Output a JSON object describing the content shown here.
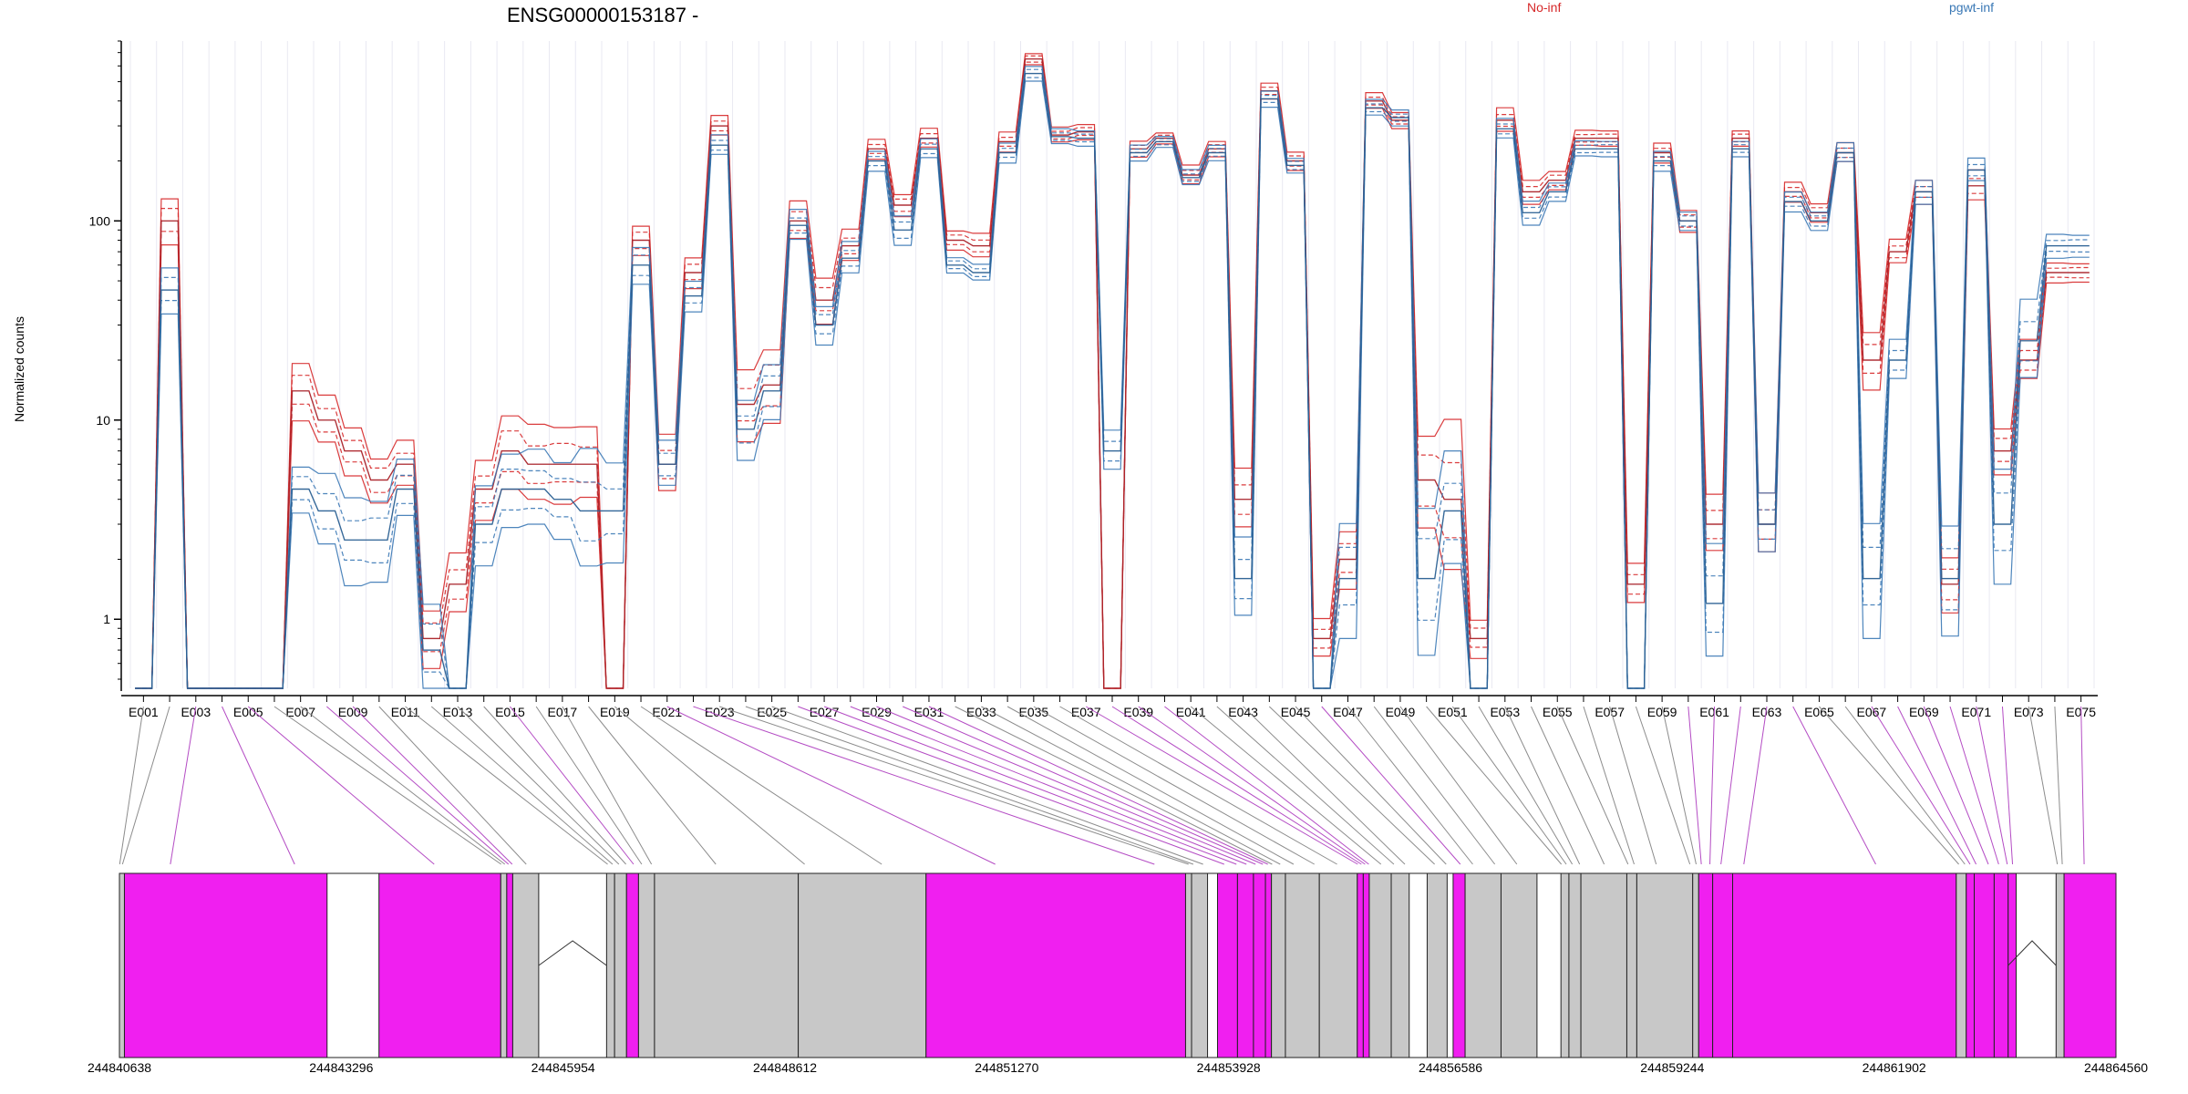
{
  "chart_data": {
    "type": "line",
    "title": "ENSG00000153187 -",
    "ylabel": "Normalized counts",
    "yscale": "log",
    "ylim": [
      0.45,
      800
    ],
    "yticks": [
      1,
      10,
      100
    ],
    "ytick_labels": [
      "1",
      "10",
      "100"
    ],
    "exon_count": 75,
    "x_tick_labels": [
      "E001",
      "E003",
      "E005",
      "E007",
      "E009",
      "E011",
      "E013",
      "E015",
      "E017",
      "E019",
      "E021",
      "E023",
      "E025",
      "E027",
      "E029",
      "E031",
      "E033",
      "E035",
      "E037",
      "E039",
      "E041",
      "E043",
      "E045",
      "E047",
      "E049",
      "E051",
      "E053",
      "E055",
      "E057",
      "E059",
      "E061",
      "E063",
      "E065",
      "E067",
      "E069",
      "E071",
      "E073",
      "E075"
    ],
    "legend": [
      {
        "name": "No-inf",
        "color": "#d62728"
      },
      {
        "name": "pgwt-inf",
        "color": "#3a78b5"
      }
    ],
    "groups": [
      {
        "name": "No-inf",
        "color": "#d62728",
        "mean": [
          0.45,
          100,
          0.45,
          0.45,
          0.45,
          0.45,
          14,
          10,
          7,
          5,
          6,
          0.8,
          1.5,
          4.5,
          7,
          6,
          6,
          6,
          0.45,
          80,
          6,
          55,
          300,
          12,
          15,
          100,
          40,
          75,
          230,
          120,
          260,
          80,
          75,
          250,
          650,
          270,
          280,
          0.45,
          230,
          260,
          170,
          230,
          4,
          450,
          200,
          0.8,
          2,
          400,
          320,
          5,
          4,
          0.8,
          320,
          140,
          160,
          260,
          260,
          1.5,
          220,
          100,
          3,
          260,
          3,
          140,
          110,
          220,
          20,
          70,
          140,
          1.5,
          150,
          7,
          20,
          55,
          55
        ],
        "spread": [
          0,
          0.12,
          0,
          0,
          0,
          0,
          0.15,
          0.12,
          0.12,
          0.12,
          0.12,
          0.15,
          0.15,
          0.15,
          0.2,
          0.2,
          0.2,
          0.18,
          0,
          0.08,
          0.15,
          0.08,
          0.05,
          0.18,
          0.2,
          0.1,
          0.12,
          0.08,
          0.05,
          0.06,
          0.05,
          0.05,
          0.06,
          0.05,
          0.03,
          0.04,
          0.04,
          0,
          0.04,
          0.03,
          0.05,
          0.04,
          0.15,
          0.04,
          0.05,
          0.1,
          0.15,
          0.04,
          0.04,
          0.25,
          0.4,
          0.1,
          0.06,
          0.06,
          0.05,
          0.04,
          0.04,
          0.1,
          0.05,
          0.06,
          0.15,
          0.04,
          0.15,
          0.05,
          0.05,
          0.05,
          0.15,
          0.06,
          0.06,
          0.15,
          0.08,
          0.12,
          0.1,
          0.05,
          0.05
        ]
      },
      {
        "name": "pgwt-inf",
        "color": "#3a78b5",
        "mean": [
          0.45,
          45,
          0.45,
          0.45,
          0.45,
          0.45,
          4.5,
          3.5,
          2.5,
          2.5,
          4.5,
          0.7,
          0.45,
          3,
          4.5,
          4.5,
          4,
          3.5,
          3.5,
          60,
          6,
          42,
          240,
          9,
          14,
          95,
          30,
          65,
          200,
          90,
          230,
          60,
          55,
          220,
          550,
          265,
          260,
          7,
          220,
          250,
          165,
          220,
          1.6,
          410,
          190,
          0.45,
          1.6,
          370,
          330,
          1.6,
          3.5,
          0.45,
          290,
          110,
          140,
          230,
          230,
          0.45,
          200,
          100,
          1.2,
          230,
          3,
          125,
          100,
          220,
          1.6,
          20,
          140,
          1.6,
          180,
          3,
          25,
          75,
          75
        ],
        "spread": [
          0,
          0.12,
          0,
          0,
          0,
          0,
          0.12,
          0.18,
          0.22,
          0.22,
          0.15,
          0.25,
          0,
          0.2,
          0.2,
          0.2,
          0.2,
          0.3,
          0.25,
          0.1,
          0.12,
          0.08,
          0.05,
          0.15,
          0.15,
          0.08,
          0.1,
          0.08,
          0.05,
          0.08,
          0.05,
          0.04,
          0.04,
          0.05,
          0.04,
          0.04,
          0.04,
          0.1,
          0.04,
          0.03,
          0.04,
          0.04,
          0.2,
          0.04,
          0.04,
          0,
          0.3,
          0.04,
          0.04,
          0.4,
          0.3,
          0.2,
          0.05,
          0.06,
          0.05,
          0.04,
          0.04,
          0.2,
          0.05,
          0.05,
          0.3,
          0.04,
          0.15,
          0.05,
          0.05,
          0.05,
          0.3,
          0.1,
          0.06,
          0.3,
          0.06,
          0.3,
          0.2,
          0.06,
          0.06
        ]
      }
    ],
    "gene_axis_labels": [
      "244840638",
      "244843296",
      "244845954",
      "244848612",
      "244851270",
      "244853928",
      "244856586",
      "244859244",
      "244861902",
      "244864560"
    ],
    "gene_range": [
      244840638,
      244864560
    ]
  },
  "colors": {
    "coding_exon": "#f01ff0",
    "noncoding_exon": "#c8c8c8",
    "connector_coding": "#b44cc4",
    "connector_noncoding": "#8c8c8c"
  }
}
